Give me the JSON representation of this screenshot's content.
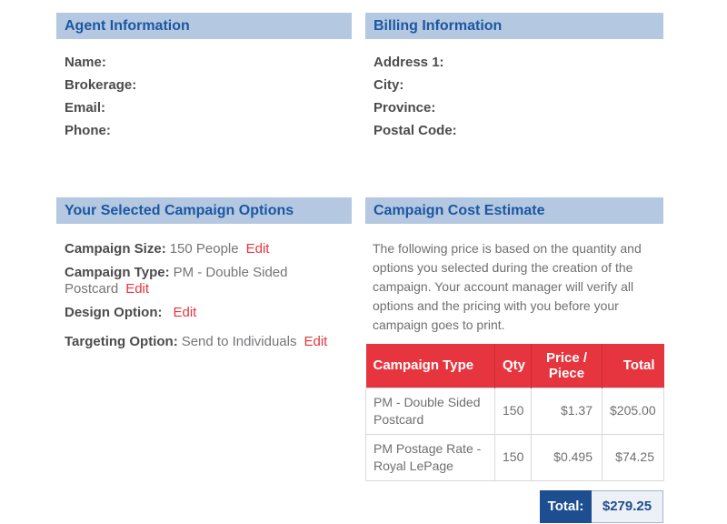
{
  "colors": {
    "panel_header_bg": "#b5c8e1",
    "panel_header_text": "#1c57a0",
    "accent_red": "#e6353e",
    "total_navy": "#1d4e8f",
    "label_text": "#4c4c4e",
    "muted_text": "#6e6f71"
  },
  "panels": {
    "agent": {
      "title": "Agent Information",
      "fields": [
        {
          "label": "Name:"
        },
        {
          "label": "Brokerage:"
        },
        {
          "label": "Email:"
        },
        {
          "label": "Phone:"
        }
      ]
    },
    "billing": {
      "title": "Billing Information",
      "fields": [
        {
          "label": "Address 1:"
        },
        {
          "label": "City:"
        },
        {
          "label": "Province:"
        },
        {
          "label": "Postal Code:"
        }
      ]
    },
    "options": {
      "title": "Your Selected Campaign Options",
      "items": [
        {
          "label": "Campaign Size:",
          "value": "150 People",
          "edit": "Edit"
        },
        {
          "label": "Campaign Type:",
          "value": "PM - Double Sided Postcard",
          "edit": "Edit"
        },
        {
          "label": "Design Option:",
          "value": "",
          "edit": "Edit"
        },
        {
          "label": "Targeting Option:",
          "value": "Send to Individuals",
          "edit": "Edit"
        }
      ]
    },
    "estimate": {
      "title": "Campaign Cost Estimate",
      "description": "The following price is based on the quantity and options you selected during the creation of the campaign. Your account manager will verify all options and the pricing with you before your campaign goes to print.",
      "table": {
        "headers": {
          "type": "Campaign Type",
          "qty": "Qty",
          "price": "Price / Piece",
          "total": "Total"
        },
        "rows": [
          {
            "type": "PM - Double Sided Postcard",
            "qty": "150",
            "price": "$1.37",
            "total": "$205.00"
          },
          {
            "type": "PM Postage Rate - Royal LePage",
            "qty": "150",
            "price": "$0.495",
            "total": "$74.25"
          }
        ]
      },
      "total_label": "Total:",
      "total_value": "$279.25"
    }
  }
}
